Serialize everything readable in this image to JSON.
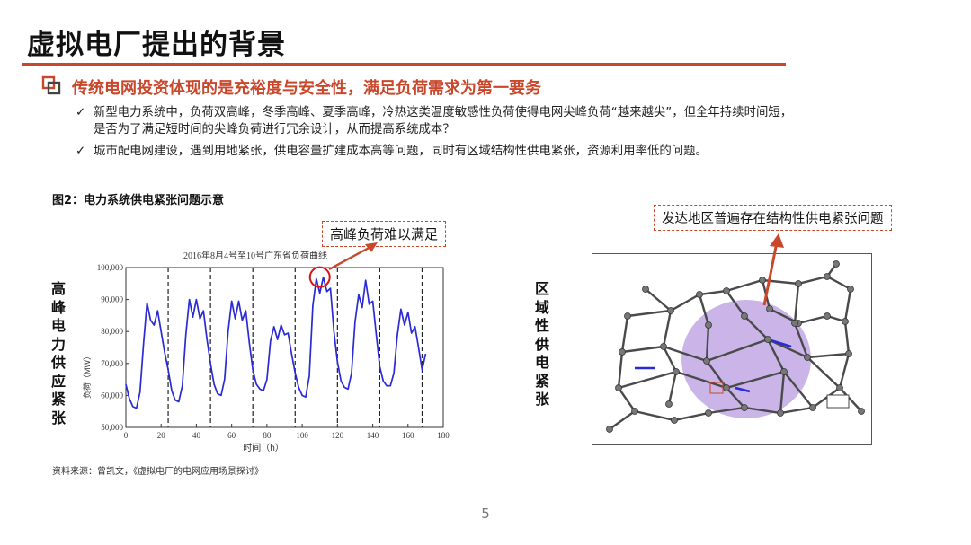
{
  "slide": {
    "title": "虚拟电厂提出的背景",
    "subtitle": "传统电网投资体现的是充裕度与安全性，满足负荷需求为第一要务",
    "bullets": [
      {
        "icon": "check-mark-icon",
        "mark": "✓",
        "lines": [
          "新型电力系统中，负荷双高峰，冬季高峰、夏季高峰，冷热这类温度敏感性负荷使得电网尖峰负荷“越来越尖”，但全年持续时间短，",
          "是否为了满足短时间的尖峰负荷进行冗余设计，从而提高系统成本？"
        ]
      },
      {
        "icon": "check-mark-icon",
        "mark": "✓",
        "lines": [
          "城市配电网建设，遇到用地紧张，供电容量扩建成本高等问题，同时有区域结构性供电紧张，资源利用率低的问题。"
        ]
      }
    ],
    "figure_caption": "图2：电力系统供电紧张问题示意",
    "left_label": "高峰电力供应紧张",
    "right_label": "区域性供电紧张",
    "callout_left": "高峰负荷难以满足",
    "callout_right": "发达地区普遍存在结构性供电紧张问题",
    "source": "资料来源：曾凯文，《虚拟电厂的电网应用场景探讨》",
    "page_number": "5",
    "colors": {
      "accent": "#c9472b",
      "line": "#2a2ad6",
      "region": "#b89be0"
    }
  },
  "chart_data": {
    "type": "line",
    "title": "2016年8月4号至10号广东省负荷曲线",
    "xlabel": "时间（h）",
    "ylabel": "负荷（MW）",
    "xlim": [
      0,
      180
    ],
    "ylim": [
      50000,
      100000
    ],
    "xticks": [
      0,
      20,
      40,
      60,
      80,
      100,
      120,
      140,
      160,
      180
    ],
    "yticks": [
      50000,
      60000,
      70000,
      80000,
      90000,
      100000
    ],
    "ytick_labels": [
      "50,000",
      "60,000",
      "70,000",
      "80,000",
      "90,000",
      "100,000"
    ],
    "day_dividers": [
      24,
      48,
      72,
      96,
      120,
      144,
      168
    ],
    "highlight": {
      "x": 110,
      "y": 97000
    },
    "series": [
      {
        "x": [
          0,
          2,
          4,
          6,
          8,
          10,
          12,
          14,
          16,
          18,
          20,
          22,
          24,
          26,
          28,
          30,
          32,
          34,
          36,
          38,
          40,
          42,
          44,
          46,
          48,
          50,
          52,
          54,
          56,
          58,
          60,
          62,
          64,
          66,
          68,
          70,
          72,
          74,
          76,
          78,
          80,
          82,
          84,
          86,
          88,
          90,
          92,
          94,
          96,
          98,
          100,
          102,
          104,
          106,
          108,
          110,
          112,
          114,
          116,
          118,
          120,
          122,
          124,
          126,
          128,
          130,
          132,
          134,
          136,
          138,
          140,
          142,
          144,
          146,
          148,
          150,
          152,
          154,
          156,
          158,
          160,
          162,
          164,
          166,
          168,
          170
        ],
        "values": [
          63500,
          59000,
          56500,
          56000,
          61000,
          76000,
          89000,
          83500,
          82000,
          86500,
          80000,
          73500,
          68000,
          61500,
          58500,
          58000,
          63000,
          79000,
          90000,
          84500,
          90000,
          84000,
          86500,
          77500,
          70000,
          63500,
          60500,
          60000,
          65000,
          80000,
          89500,
          84000,
          89500,
          83500,
          86500,
          76500,
          68000,
          63500,
          62000,
          61500,
          65000,
          77000,
          81500,
          77500,
          82000,
          79000,
          79500,
          73000,
          67000,
          62500,
          60000,
          59500,
          66000,
          88000,
          96500,
          92000,
          97000,
          92500,
          93500,
          80000,
          70500,
          64500,
          62500,
          62000,
          67000,
          83000,
          91500,
          87500,
          96000,
          88500,
          89500,
          79000,
          69000,
          64500,
          63000,
          63000,
          67000,
          79000,
          87000,
          82000,
          86000,
          79500,
          81500,
          75000,
          68000,
          73000
        ]
      }
    ]
  }
}
